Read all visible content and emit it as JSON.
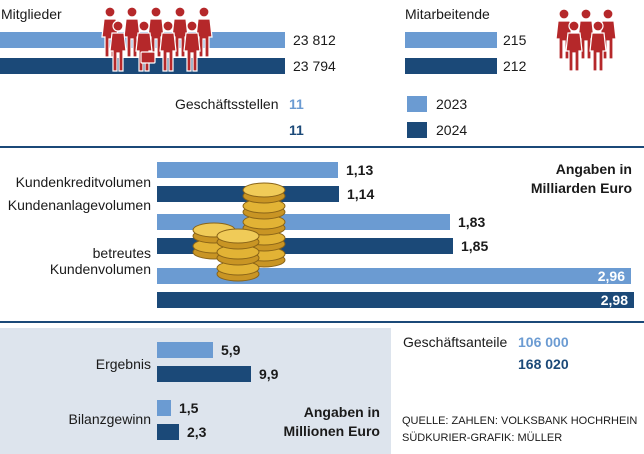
{
  "colors": {
    "light": "#6b9bd2",
    "dark": "#1b4978",
    "figures": "#b5282a",
    "coins": "#e2b335",
    "rule": "#1b4978",
    "panel": "#dde4ed"
  },
  "icons": [
    "people-group-icon",
    "people-group-icon",
    "coin-stack-icon"
  ],
  "members": {
    "label": "Mitglieder",
    "values": [
      "23 812",
      "23 794"
    ]
  },
  "employees": {
    "label": "Mitarbeitende",
    "values": [
      "215",
      "212"
    ]
  },
  "branches": {
    "label": "Geschäftsstellen",
    "values": [
      "11",
      "11"
    ]
  },
  "legend": {
    "y2023": "2023",
    "y2024": "2024"
  },
  "volume_note": {
    "line1": "Angaben in",
    "line2": "Milliarden Euro"
  },
  "volumes": [
    {
      "label": "Kundenkreditvolumen",
      "values": [
        "1,13",
        "1,14"
      ]
    },
    {
      "label": "Kundenanlagevolumen",
      "values": [
        "1,83",
        "1,85"
      ]
    },
    {
      "label_line1": "betreutes",
      "label_line2": "Kundenvolumen",
      "values": [
        "2,96",
        "2,98"
      ]
    }
  ],
  "shares": {
    "label": "Geschäftsanteile",
    "values": [
      "106 000",
      "168 020"
    ]
  },
  "results": [
    {
      "label": "Ergebnis",
      "values": [
        "5,9",
        "9,9"
      ]
    },
    {
      "label": "Bilanzgewinn",
      "values": [
        "1,5",
        "2,3"
      ]
    }
  ],
  "results_note": {
    "line1": "Angaben in",
    "line2": "Millionen Euro"
  },
  "source": {
    "line1": "QUELLE: ZAHLEN: VOLKSBANK HOCHRHEIN",
    "line2": "SÜDKURIER-GRAFIK: MÜLLER"
  },
  "chart_data": [
    {
      "type": "bar",
      "categories": [
        "Mitglieder"
      ],
      "series": [
        {
          "name": "2023",
          "values": [
            23812
          ]
        },
        {
          "name": "2024",
          "values": [
            23794
          ]
        }
      ]
    },
    {
      "type": "bar",
      "categories": [
        "Mitarbeitende"
      ],
      "series": [
        {
          "name": "2023",
          "values": [
            215
          ]
        },
        {
          "name": "2024",
          "values": [
            212
          ]
        }
      ]
    },
    {
      "type": "table",
      "categories": [
        "Geschäftsstellen"
      ],
      "series": [
        {
          "name": "2023",
          "values": [
            11
          ]
        },
        {
          "name": "2024",
          "values": [
            11
          ]
        }
      ]
    },
    {
      "type": "bar",
      "categories": [
        "Kundenkreditvolumen",
        "Kundenanlagevolumen",
        "betreutes Kundenvolumen"
      ],
      "series": [
        {
          "name": "2023",
          "values": [
            1.13,
            1.83,
            2.96
          ]
        },
        {
          "name": "2024",
          "values": [
            1.14,
            1.85,
            2.98
          ]
        }
      ]
    },
    {
      "type": "table",
      "categories": [
        "Geschäftsanteile"
      ],
      "series": [
        {
          "name": "2023",
          "values": [
            106000
          ]
        },
        {
          "name": "2024",
          "values": [
            168020
          ]
        }
      ]
    },
    {
      "type": "bar",
      "categories": [
        "Ergebnis",
        "Bilanzgewinn"
      ],
      "series": [
        {
          "name": "2023",
          "values": [
            5.9,
            1.5
          ]
        },
        {
          "name": "2024",
          "values": [
            9.9,
            2.3
          ]
        }
      ]
    }
  ]
}
